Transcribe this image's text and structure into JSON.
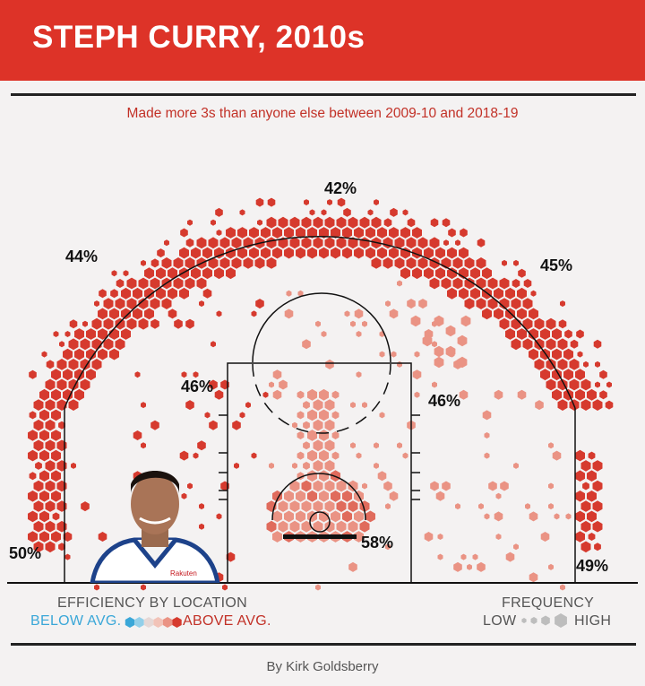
{
  "header": {
    "title": "STEPH CURRY, 2010s"
  },
  "subtitle": "Made more 3s than anyone else between 2009-10 and 2018-19",
  "colors": {
    "above_avg": "#d63a2e",
    "above_mid": "#e06b5c",
    "slightly_above": "#ea9384",
    "average": "#f2c3b8",
    "below_avg": "#3aa7d8",
    "header": "#dd3328"
  },
  "chart_data": {
    "type": "heatmap",
    "title": "STEPH CURRY, 2010s",
    "subtitle": "Made more 3s than anyone else between 2009-10 and 2018-19",
    "zones": [
      {
        "zone": "left-corner-3",
        "fg_pct": 50,
        "label": "50%"
      },
      {
        "zone": "left-wing-3",
        "fg_pct": 44,
        "label": "44%"
      },
      {
        "zone": "top-of-key-3",
        "fg_pct": 42,
        "label": "42%"
      },
      {
        "zone": "right-wing-3",
        "fg_pct": 45,
        "label": "45%"
      },
      {
        "zone": "right-corner-3",
        "fg_pct": 49,
        "label": "49%"
      },
      {
        "zone": "left-midrange",
        "fg_pct": 46,
        "label": "46%"
      },
      {
        "zone": "right-midrange",
        "fg_pct": 46,
        "label": "46%"
      },
      {
        "zone": "restricted-area",
        "fg_pct": 58,
        "label": "58%"
      }
    ],
    "legend": {
      "efficiency_title": "EFFICIENCY BY LOCATION",
      "below_label": "BELOW AVG.",
      "above_label": "ABOVE AVG.",
      "frequency_title": "FREQUENCY",
      "low_label": "LOW",
      "high_label": "HIGH"
    }
  },
  "credit": "By Kirk Goldsberry",
  "player_image": {
    "icon": "player-portrait",
    "jersey_text": "Rakuten"
  }
}
